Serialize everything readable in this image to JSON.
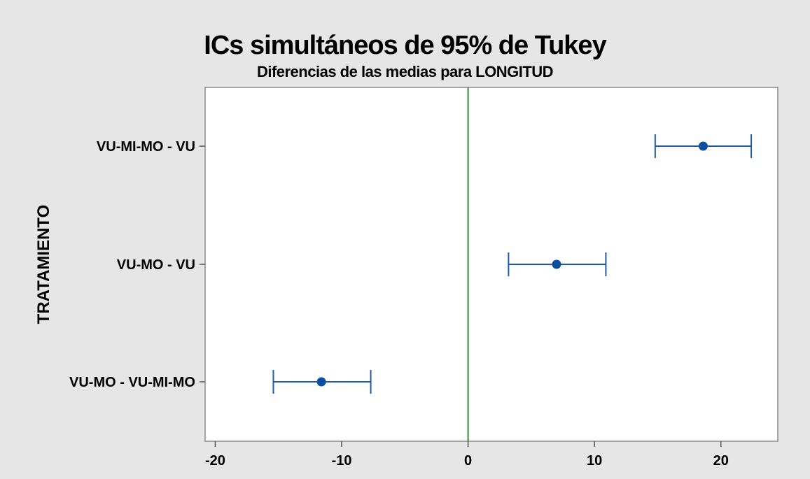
{
  "chart_data": {
    "type": "interval",
    "title": "ICs simultáneos de 95% de Tukey",
    "subtitle": "Diferencias de las medias para LONGITUD",
    "ylabel": "TRATAMIENTO",
    "xlabel": "",
    "xlim": [
      -20.8,
      24.5
    ],
    "xticks": [
      -20,
      -10,
      0,
      10,
      20
    ],
    "xtick_labels": [
      "-20",
      "-10",
      "0",
      "10",
      "20"
    ],
    "reference_line": 0,
    "grid": false,
    "categories": [
      "VU-MI-MO - VU",
      "VU-MO - VU",
      "VU-MO - VU-MI-MO"
    ],
    "intervals": [
      {
        "label": "VU-MI-MO - VU",
        "lower": 14.8,
        "mean": 18.6,
        "upper": 22.4
      },
      {
        "label": "VU-MO - VU",
        "lower": 3.2,
        "mean": 7.0,
        "upper": 10.9
      },
      {
        "label": "VU-MO - VU-MI-MO",
        "lower": -15.4,
        "mean": -11.6,
        "upper": -7.7
      }
    ],
    "colors": {
      "interval": "#1f5aa6",
      "point": "#0b4ea2",
      "reference": "#2e8b2e",
      "frame": "#8c8c8c",
      "plot_bg": "#ffffff",
      "figure_bg": "#e6e6e6"
    }
  }
}
